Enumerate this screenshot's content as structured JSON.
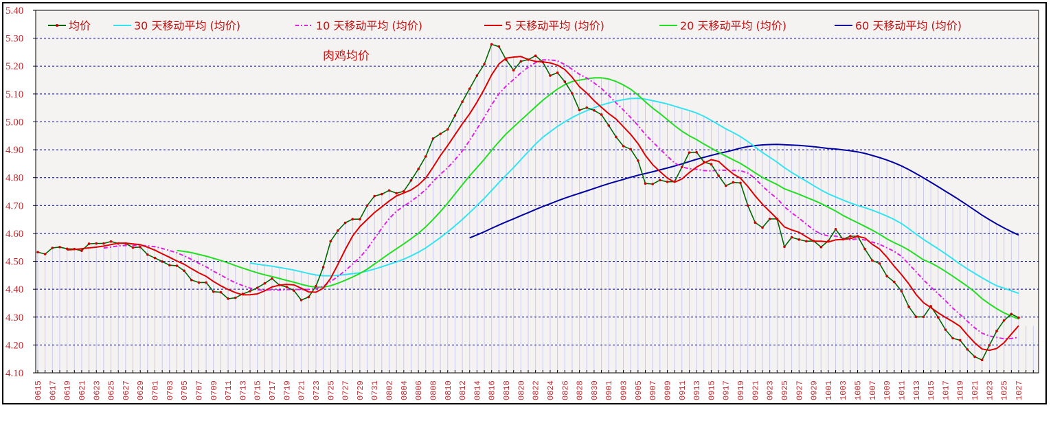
{
  "chart_data": {
    "type": "line",
    "title": "肉鸡均价",
    "xlabel": "",
    "ylabel": "",
    "ylim": [
      4.1,
      5.4
    ],
    "yticks": [
      "4.10",
      "4.20",
      "4.30",
      "4.40",
      "4.50",
      "4.60",
      "4.70",
      "4.80",
      "4.90",
      "5.00",
      "5.10",
      "5.20",
      "5.30",
      "5.40"
    ],
    "grid": true,
    "legend_position": "top",
    "days_total": 137,
    "xtick_labels": [
      "0615",
      "0617",
      "0619",
      "0621",
      "0623",
      "0625",
      "0627",
      "0629",
      "0701",
      "0703",
      "0705",
      "0707",
      "0709",
      "0711",
      "0713",
      "0715",
      "0717",
      "0719",
      "0721",
      "0723",
      "0725",
      "0727",
      "0729",
      "0731",
      "0802",
      "0804",
      "0806",
      "0808",
      "0810",
      "0812",
      "0814",
      "0816",
      "0818",
      "0820",
      "0822",
      "0824",
      "0826",
      "0828",
      "0830",
      "0901",
      "0903",
      "0905",
      "0907",
      "0909",
      "0911",
      "0913",
      "0915",
      "0917",
      "0919",
      "0921",
      "0923",
      "0925",
      "0927",
      "0929",
      "1001",
      "1003",
      "1005",
      "1007",
      "1009",
      "1011",
      "1013",
      "1015",
      "1017",
      "1019",
      "1021",
      "1023",
      "1025",
      "1027"
    ],
    "series": [
      {
        "name": "均价",
        "color": "#006400",
        "marker_color": "#cc0000",
        "style": "line-marker",
        "values": [
          4.533,
          4.526,
          4.548,
          4.551,
          4.545,
          4.544,
          4.538,
          4.563,
          4.564,
          4.564,
          4.571,
          4.564,
          4.564,
          4.549,
          4.551,
          4.524,
          4.512,
          4.499,
          4.486,
          4.484,
          4.466,
          4.433,
          4.424,
          4.424,
          4.391,
          4.389,
          4.366,
          4.369,
          4.383,
          4.393,
          4.405,
          4.421,
          4.438,
          4.415,
          4.408,
          4.395,
          4.361,
          4.372,
          4.411,
          4.479,
          4.572,
          4.61,
          4.638,
          4.651,
          4.651,
          4.7,
          4.734,
          4.741,
          4.754,
          4.744,
          4.751,
          4.79,
          4.831,
          4.876,
          4.94,
          4.957,
          4.973,
          5.023,
          5.072,
          5.119,
          5.166,
          5.207,
          5.278,
          5.27,
          5.222,
          5.185,
          5.217,
          5.223,
          5.237,
          5.214,
          5.166,
          5.176,
          5.144,
          5.102,
          5.042,
          5.051,
          5.041,
          5.026,
          4.987,
          4.946,
          4.913,
          4.902,
          4.861,
          4.779,
          4.777,
          4.791,
          4.785,
          4.786,
          4.838,
          4.89,
          4.891,
          4.856,
          4.848,
          4.807,
          4.771,
          4.783,
          4.781,
          4.7,
          4.639,
          4.621,
          4.652,
          4.652,
          4.552,
          4.586,
          4.578,
          4.572,
          4.573,
          4.551,
          4.573,
          4.615,
          4.579,
          4.59,
          4.59,
          4.544,
          4.503,
          4.492,
          4.447,
          4.426,
          4.393,
          4.337,
          4.301,
          4.301,
          4.339,
          4.299,
          4.255,
          4.224,
          4.217,
          4.184,
          4.158,
          4.146,
          4.199,
          4.25,
          4.288,
          4.311,
          4.298
        ]
      },
      {
        "name": "30 天移动平均 (均价)",
        "color": "#33e4f0",
        "style": "solid",
        "ma_period": 30
      },
      {
        "name": "10 天移动平均 (均价)",
        "color": "#e020e0",
        "style": "dash-dot",
        "ma_period": 10
      },
      {
        "name": "5 天移动平均 (均价)",
        "color": "#dd0000",
        "style": "solid",
        "ma_period": 5
      },
      {
        "name": "20 天移动平均 (均价)",
        "color": "#22dd22",
        "style": "solid",
        "ma_period": 20
      },
      {
        "name": "60 天移动平均 (均价)",
        "color": "#0000a0",
        "style": "solid",
        "ma_period": 60
      }
    ]
  }
}
